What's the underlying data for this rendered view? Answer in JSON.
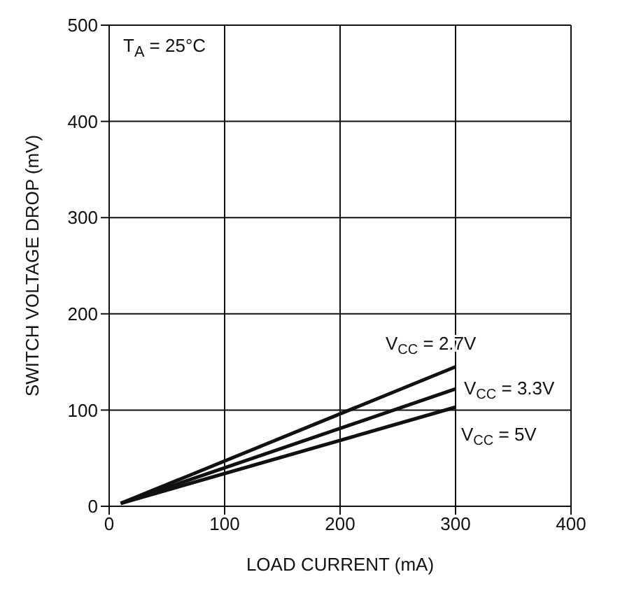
{
  "chart_data": {
    "type": "line",
    "xlabel": "LOAD CURRENT (mA)",
    "ylabel": "SWITCH VOLTAGE DROP (mV)",
    "annotations": [
      "T$_{A}$ = 25°C"
    ],
    "x": [
      10,
      300
    ],
    "series": [
      {
        "name": "V$_{CC}$ = 2.7V",
        "color": "#111111",
        "values": [
          3,
          145
        ]
      },
      {
        "name": "V$_{CC}$ = 3.3V",
        "color": "#111111",
        "values": [
          3,
          122
        ]
      },
      {
        "name": "V$_{CC}$ = 5V",
        "color": "#111111",
        "values": [
          3,
          103
        ]
      }
    ],
    "xlim": [
      0,
      400
    ],
    "xticks": [
      0,
      100,
      200,
      300,
      400
    ],
    "ylim": [
      0,
      500
    ],
    "yticks": [
      0,
      100,
      200,
      300,
      400,
      500
    ],
    "grid": true,
    "marker": "none",
    "line_style": "solid"
  }
}
